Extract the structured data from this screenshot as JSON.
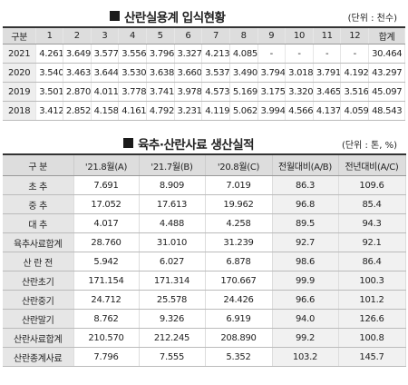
{
  "section1": {
    "title": "산란실용계 입식현황",
    "unit": "(단위 : 천수)",
    "headers": [
      "구분",
      "1",
      "2",
      "3",
      "4",
      "5",
      "6",
      "7",
      "8",
      "9",
      "10",
      "11",
      "12",
      "합계"
    ],
    "rows": [
      {
        "year": "2021",
        "values": [
          "4.261",
          "3.649",
          "3.577",
          "3.556",
          "3.796",
          "3.327",
          "4.213",
          "4.085",
          "-",
          "-",
          "-",
          "-"
        ],
        "total": "30.464"
      },
      {
        "year": "2020",
        "values": [
          "3.540",
          "3.463",
          "3.644",
          "3.530",
          "3.638",
          "3.660",
          "3.537",
          "3.490",
          "3.794",
          "3.018",
          "3.791",
          "4.192"
        ],
        "total": "43.297"
      },
      {
        "year": "2019",
        "values": [
          "3.501",
          "2.870",
          "4.011",
          "3.778",
          "3.741",
          "3.978",
          "4.573",
          "5.169",
          "3.175",
          "3.320",
          "3.465",
          "3.516"
        ],
        "total": "45.097"
      },
      {
        "year": "2018",
        "values": [
          "3.412",
          "2.852",
          "4.158",
          "4.161",
          "4.792",
          "3.231",
          "4.119",
          "5.062",
          "3.994",
          "4.566",
          "4.137",
          "4.059"
        ],
        "total": "48.543"
      }
    ]
  },
  "section2": {
    "title": "육추·산란사료 생산실적",
    "unit": "(단위 : 톤, %)",
    "headers": [
      "구 분",
      "'21.8월(A)",
      "'21.7월(B)",
      "'20.8월(C)",
      "전월대비(A/B)",
      "전년대비(A/C)"
    ],
    "rows": [
      {
        "label": "초 추",
        "a": "7.691",
        "b": "8.909",
        "c": "7.019",
        "ab": "86.3",
        "ac": "109.6"
      },
      {
        "label": "중 추",
        "a": "17.052",
        "b": "17.613",
        "c": "19.962",
        "ab": "96.8",
        "ac": "85.4"
      },
      {
        "label": "대 추",
        "a": "4.017",
        "b": "4.488",
        "c": "4.258",
        "ab": "89.5",
        "ac": "94.3"
      },
      {
        "label": "육추사료합계",
        "a": "28.760",
        "b": "31.010",
        "c": "31.239",
        "ab": "92.7",
        "ac": "92.1"
      },
      {
        "label": "산 란 전",
        "a": "5.942",
        "b": "6.027",
        "c": "6.878",
        "ab": "98.6",
        "ac": "86.4"
      },
      {
        "label": "산란초기",
        "a": "171.154",
        "b": "171.314",
        "c": "170.667",
        "ab": "99.9",
        "ac": "100.3"
      },
      {
        "label": "산란중기",
        "a": "24.712",
        "b": "25.578",
        "c": "24.426",
        "ab": "96.6",
        "ac": "101.2"
      },
      {
        "label": "산란말기",
        "a": "8.762",
        "b": "9.326",
        "c": "6.919",
        "ab": "94.0",
        "ac": "126.6"
      },
      {
        "label": "산란사료합계",
        "a": "210.570",
        "b": "212.245",
        "c": "208.890",
        "ab": "99.2",
        "ac": "100.8"
      },
      {
        "label": "산란종계사료",
        "a": "7.796",
        "b": "7.555",
        "c": "5.352",
        "ab": "103.2",
        "ac": "145.7"
      }
    ]
  }
}
